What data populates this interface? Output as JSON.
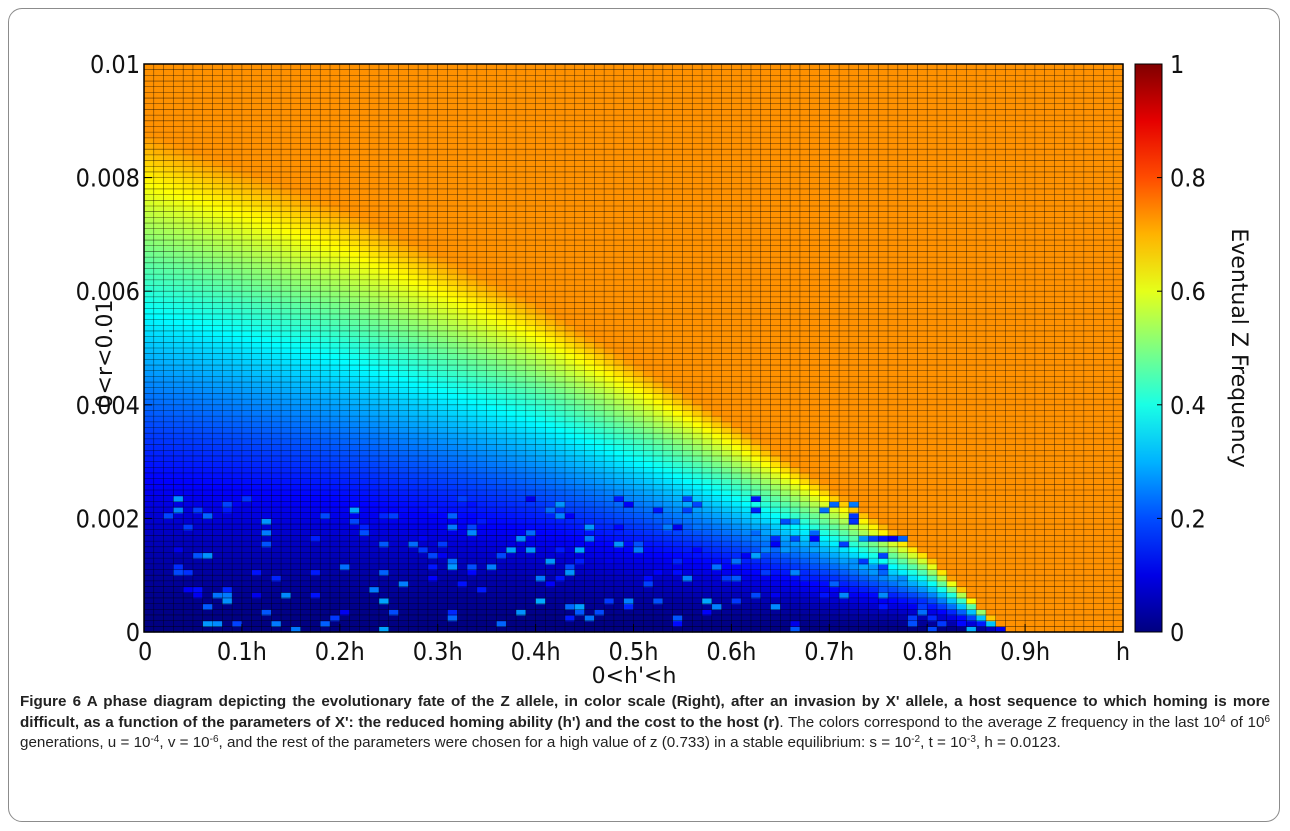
{
  "chart_data": {
    "type": "heatmap",
    "xlabel": "0<h'<h",
    "ylabel": "0<r<0.01",
    "x_ticks": [
      "0",
      "0.1h",
      "0.2h",
      "0.3h",
      "0.4h",
      "0.5h",
      "0.6h",
      "0.7h",
      "0.8h",
      "0.9h",
      "h"
    ],
    "y_ticks": [
      "0",
      "0.002",
      "0.004",
      "0.006",
      "0.008",
      "0.01"
    ],
    "xlim": [
      0,
      1
    ],
    "ylim": [
      0,
      0.01
    ],
    "grid_cols": 100,
    "grid_rows": 100,
    "colorbar": {
      "label": "Eventual Z Frequency",
      "ticks": [
        "0",
        "0.2",
        "0.4",
        "0.6",
        "0.8",
        "1"
      ],
      "range": [
        0,
        1
      ]
    },
    "plateau_value": 0.733,
    "boundary": {
      "description": "Z frequency high (~0.733) above the boundary, low near zero at small r",
      "points": [
        [
          0,
          0.0088
        ],
        [
          0.2,
          0.0075
        ],
        [
          0.4,
          0.0058
        ],
        [
          0.6,
          0.0037
        ],
        [
          0.8,
          0.0014
        ],
        [
          0.88,
          0.0
        ]
      ]
    }
  },
  "caption": {
    "label": "Figure 6",
    "bold_text": "A phase diagram depicting the evolutionary fate of the Z allele, in color scale (Right), after an invasion by X' allele, a host sequence to which homing is more difficult, as a function of the parameters of X': the reduced homing ability (h') and the cost to the host (r)",
    "plain_1": ". The colors correspond to the average Z frequency in the last 10",
    "sup_1": "4",
    "plain_2": " of 10",
    "sup_2": "6",
    "plain_3": " generations, u = 10",
    "sup_3": "-4",
    "plain_4": ", v = 10",
    "sup_4": "-6",
    "plain_5": ", and the rest of the parameters were chosen for a high value of z (0.733) in a stable equilibrium: s = 10",
    "sup_5": "-2",
    "plain_6": ", t = 10",
    "sup_6": "-3",
    "plain_7": ", h = 0.0123."
  }
}
